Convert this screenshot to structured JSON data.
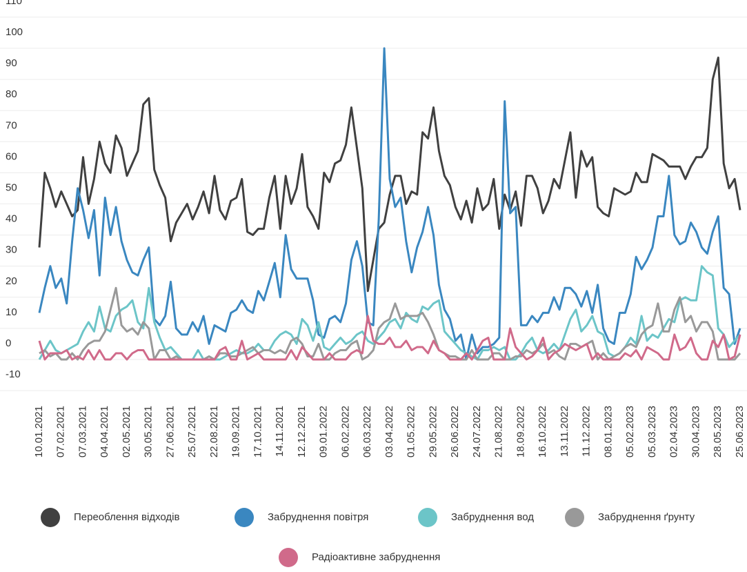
{
  "chart_data": {
    "type": "line",
    "categories": [
      "10.01.2021",
      null,
      null,
      null,
      "07.02.2021",
      null,
      null,
      null,
      "07.03.2021",
      null,
      null,
      null,
      "04.04.2021",
      null,
      null,
      null,
      "02.05.2021",
      null,
      null,
      null,
      "30.05.2021",
      null,
      null,
      null,
      "27.06.2021",
      null,
      null,
      null,
      "25.07.2021",
      null,
      null,
      null,
      "22.08.2021",
      null,
      null,
      null,
      "19.09.2021",
      null,
      null,
      null,
      "17.10.2021",
      null,
      null,
      null,
      "14.11.2021",
      null,
      null,
      null,
      "12.12.2021",
      null,
      null,
      null,
      "09.01.2022",
      null,
      null,
      null,
      "06.02.2022",
      null,
      null,
      null,
      "06.03.2022",
      null,
      null,
      null,
      "03.04.2022",
      null,
      null,
      null,
      "01.05.2022",
      null,
      null,
      null,
      "29.05.2022",
      null,
      null,
      null,
      "26.06.2022",
      null,
      null,
      null,
      "24.07.2022",
      null,
      null,
      null,
      "21.08.2022",
      null,
      null,
      null,
      "18.09.2022",
      null,
      null,
      null,
      "16.10.2022",
      null,
      null,
      null,
      "13.11.2022",
      null,
      null,
      null,
      "11.12.2022",
      null,
      null,
      null,
      "08.01.2023",
      null,
      null,
      null,
      "05.02.2023",
      null,
      null,
      null,
      "05.03.2023",
      null,
      null,
      null,
      "02.04.2023",
      null,
      null,
      null,
      "30.04.2023",
      null,
      null,
      null,
      "28.05.2023",
      null,
      null,
      null,
      "25.06.2023"
    ],
    "series": [
      {
        "name": "Переоблення відходів",
        "color": "#404040",
        "values": [
          36,
          60,
          55,
          49,
          54,
          50,
          46,
          48,
          65,
          50,
          58,
          70,
          63,
          60,
          72,
          68,
          59,
          63,
          67,
          82,
          84,
          61,
          56,
          52,
          38,
          44,
          47,
          50,
          45,
          49,
          54,
          47,
          59,
          48,
          45,
          51,
          52,
          58,
          41,
          40,
          42,
          42,
          52,
          59,
          42,
          59,
          50,
          55,
          66,
          49,
          46,
          42,
          60,
          57,
          63,
          64,
          69,
          81,
          68,
          55,
          22,
          32,
          42,
          44,
          53,
          59,
          59,
          50,
          54,
          53,
          73,
          71,
          81,
          67,
          59,
          56,
          49,
          45,
          51,
          44,
          55,
          48,
          50,
          58,
          42,
          53,
          48,
          54,
          43,
          59,
          59,
          55,
          47,
          51,
          58,
          55,
          64,
          73,
          52,
          67,
          62,
          65,
          49,
          47,
          46,
          55,
          54,
          53,
          54,
          60,
          57,
          57,
          66,
          65,
          64,
          62,
          62,
          62,
          58,
          62,
          65,
          65,
          68,
          90,
          97,
          63,
          55,
          58,
          48
        ]
      },
      {
        "name": "Забруднення повітря",
        "color": "#3a87c0",
        "values": [
          15,
          23,
          30,
          23,
          26,
          18,
          38,
          55,
          48,
          39,
          48,
          27,
          52,
          40,
          49,
          38,
          32,
          28,
          27,
          32,
          36,
          13,
          11,
          14,
          25,
          10,
          8,
          8,
          12,
          9,
          14,
          5,
          11,
          10,
          9,
          15,
          16,
          19,
          16,
          15,
          22,
          19,
          25,
          31,
          20,
          40,
          29,
          26,
          26,
          26,
          19,
          8,
          7,
          13,
          14,
          12,
          18,
          32,
          38,
          30,
          12,
          11,
          45,
          100,
          58,
          49,
          52,
          38,
          28,
          36,
          41,
          49,
          40,
          24,
          16,
          13,
          6,
          8,
          0,
          8,
          2,
          4,
          4,
          5,
          7,
          83,
          47,
          49,
          11,
          11,
          14,
          12,
          15,
          15,
          20,
          16,
          23,
          23,
          21,
          17,
          22,
          15,
          24,
          10,
          6,
          5,
          15,
          15,
          21,
          33,
          29,
          32,
          36,
          46,
          46,
          59,
          40,
          37,
          38,
          44,
          41,
          36,
          34,
          41,
          46,
          23,
          21,
          5,
          10
        ]
      },
      {
        "name": "Забруднення вод",
        "color": "#6cc5c8",
        "values": [
          0,
          3,
          6,
          3,
          2,
          3,
          4,
          5,
          9,
          12,
          9,
          17,
          10,
          9,
          14,
          16,
          17,
          19,
          12,
          10,
          23,
          12,
          7,
          3,
          4,
          2,
          0,
          0,
          0,
          3,
          0,
          1,
          0,
          0,
          1,
          2,
          3,
          2,
          2,
          3,
          5,
          3,
          3,
          6,
          8,
          9,
          8,
          5,
          13,
          11,
          6,
          12,
          4,
          3,
          5,
          7,
          5,
          6,
          8,
          9,
          6,
          5,
          7,
          9,
          12,
          13,
          10,
          15,
          13,
          12,
          17,
          16,
          18,
          19,
          9,
          7,
          5,
          3,
          2,
          1,
          0,
          3,
          3,
          4,
          3,
          4,
          0,
          0,
          2,
          5,
          7,
          3,
          2,
          3,
          5,
          3,
          8,
          13,
          16,
          9,
          11,
          14,
          9,
          8,
          2,
          1,
          2,
          4,
          7,
          5,
          14,
          6,
          8,
          7,
          10,
          13,
          12,
          19,
          20,
          19,
          19,
          30,
          28,
          27,
          10,
          8,
          4,
          6,
          8
        ]
      },
      {
        "name": "Забруднення ґрунту",
        "color": "#999999",
        "values": [
          2,
          3,
          1,
          2,
          0,
          0,
          2,
          0,
          3,
          5,
          6,
          6,
          9,
          16,
          23,
          11,
          9,
          10,
          8,
          12,
          10,
          0,
          3,
          3,
          0,
          1,
          0,
          0,
          0,
          0,
          0,
          1,
          0,
          2,
          2,
          1,
          1,
          2,
          3,
          4,
          2,
          3,
          3,
          2,
          3,
          2,
          6,
          7,
          5,
          1,
          1,
          5,
          0,
          0,
          2,
          3,
          3,
          5,
          6,
          0,
          1,
          3,
          10,
          12,
          13,
          18,
          13,
          14,
          14,
          14,
          15,
          12,
          8,
          3,
          2,
          1,
          1,
          0,
          0,
          3,
          0,
          0,
          0,
          2,
          2,
          0,
          0,
          1,
          1,
          3,
          2,
          3,
          5,
          2,
          3,
          1,
          0,
          5,
          5,
          4,
          5,
          6,
          0,
          2,
          0,
          1,
          2,
          4,
          5,
          4,
          8,
          10,
          11,
          18,
          9,
          9,
          16,
          20,
          12,
          14,
          9,
          12,
          12,
          9,
          0,
          0,
          0,
          0,
          2
        ]
      },
      {
        "name": "Радіоактивне забруднення",
        "color": "#d06a8a",
        "values": [
          6,
          0,
          2,
          2,
          2,
          3,
          0,
          1,
          0,
          3,
          0,
          3,
          0,
          0,
          2,
          2,
          0,
          2,
          3,
          3,
          0,
          0,
          0,
          0,
          0,
          0,
          0,
          0,
          0,
          0,
          0,
          0,
          0,
          3,
          4,
          0,
          0,
          6,
          0,
          1,
          2,
          0,
          0,
          0,
          0,
          0,
          3,
          0,
          4,
          2,
          0,
          0,
          0,
          2,
          0,
          0,
          0,
          2,
          3,
          2,
          14,
          6,
          5,
          5,
          7,
          4,
          4,
          6,
          3,
          4,
          4,
          2,
          6,
          3,
          2,
          0,
          0,
          0,
          2,
          0,
          3,
          6,
          7,
          0,
          0,
          0,
          10,
          4,
          2,
          0,
          1,
          3,
          7,
          0,
          2,
          3,
          5,
          4,
          3,
          4,
          5,
          0,
          2,
          0,
          0,
          0,
          0,
          2,
          1,
          3,
          0,
          4,
          3,
          2,
          0,
          0,
          8,
          3,
          4,
          7,
          2,
          0,
          0,
          6,
          4,
          8,
          0,
          1,
          8
        ]
      }
    ],
    "ylim": [
      -10,
      110
    ],
    "yticks": [
      -10,
      0,
      10,
      20,
      30,
      40,
      50,
      60,
      70,
      80,
      90,
      100,
      110
    ],
    "grid": true
  }
}
